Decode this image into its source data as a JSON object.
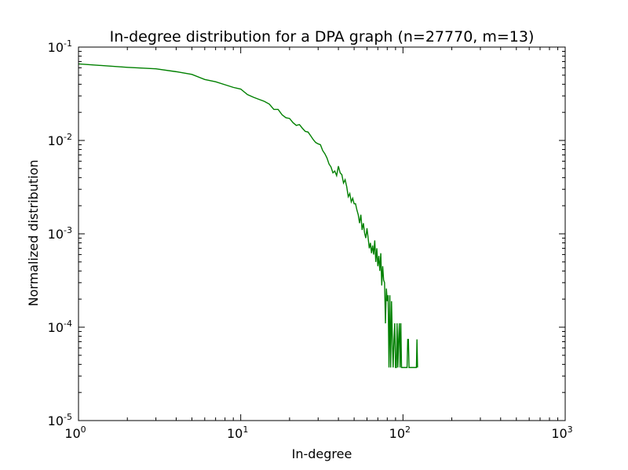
{
  "chart_data": {
    "type": "line",
    "title": "In-degree distribution for a DPA graph (n=27770, m=13)",
    "xlabel": "In-degree",
    "ylabel": "Normalized distribution",
    "xscale": "log",
    "yscale": "log",
    "xlim": [
      1,
      1000
    ],
    "ylim": [
      1e-05,
      0.1
    ],
    "grid": false,
    "legend": "none",
    "x_ticks": [
      {
        "value": 1,
        "base": "10",
        "exp": "0"
      },
      {
        "value": 10,
        "base": "10",
        "exp": "1"
      },
      {
        "value": 100,
        "base": "10",
        "exp": "2"
      },
      {
        "value": 1000,
        "base": "10",
        "exp": "3"
      }
    ],
    "y_ticks": [
      {
        "value": 1e-05,
        "base": "10",
        "exp": "-5"
      },
      {
        "value": 0.0001,
        "base": "10",
        "exp": "-4"
      },
      {
        "value": 0.001,
        "base": "10",
        "exp": "-3"
      },
      {
        "value": 0.01,
        "base": "10",
        "exp": "-2"
      },
      {
        "value": 0.1,
        "base": "10",
        "exp": "-1"
      }
    ],
    "series": [
      {
        "color": "#008000",
        "x": [
          1,
          2,
          3,
          4,
          5,
          6,
          7,
          8,
          9,
          10,
          11,
          12,
          13,
          14,
          15,
          16,
          17,
          18,
          19,
          20,
          21,
          22,
          23,
          24,
          25,
          26,
          27,
          28,
          29,
          30,
          31,
          32,
          33,
          34,
          35,
          36,
          37,
          38,
          39,
          40,
          41,
          42,
          43,
          44,
          45,
          46,
          47,
          48,
          49,
          50,
          51,
          52,
          53,
          54,
          55,
          56,
          57,
          58,
          59,
          60,
          61,
          62,
          63,
          64,
          65,
          66,
          67,
          68,
          69,
          70,
          71,
          72,
          73,
          74,
          75,
          76,
          77,
          78,
          79,
          80,
          81,
          82,
          83,
          84,
          85,
          86,
          87,
          88,
          89,
          90,
          91,
          92,
          93,
          94,
          95,
          96,
          97,
          98,
          99,
          100,
          101,
          102,
          103,
          104,
          105,
          106,
          107,
          108,
          109,
          110,
          111,
          112,
          113,
          114,
          115,
          116,
          117,
          118,
          119,
          120,
          121,
          122,
          123
        ],
        "y": [
          0.066,
          0.0607,
          0.0585,
          0.0545,
          0.051,
          0.045,
          0.0425,
          0.0395,
          0.037,
          0.0355,
          0.031,
          0.029,
          0.0275,
          0.0262,
          0.0245,
          0.0215,
          0.0215,
          0.0188,
          0.0175,
          0.0172,
          0.0155,
          0.0145,
          0.0148,
          0.0135,
          0.0125,
          0.0123,
          0.0112,
          0.0102,
          0.0095,
          0.0092,
          0.009,
          0.0078,
          0.0072,
          0.0065,
          0.0056,
          0.0052,
          0.0045,
          0.0047,
          0.0042,
          0.0053,
          0.0045,
          0.0043,
          0.0035,
          0.0038,
          0.0032,
          0.0025,
          0.0027,
          0.0022,
          0.0024,
          0.0021,
          0.0021,
          0.0018,
          0.0016,
          0.0013,
          0.0016,
          0.0011,
          0.0013,
          0.00102,
          0.0009,
          0.00115,
          0.0009,
          0.0007,
          0.0008,
          0.00062,
          0.00075,
          0.0006,
          0.00085,
          0.0005,
          0.0007,
          0.00045,
          0.00058,
          0.0004,
          0.00062,
          0.00028,
          0.00045,
          0.00032,
          0.0003,
          0.00011,
          0.00026,
          0.00019,
          0.00022,
          3.7e-05,
          0.00022,
          3.7e-05,
          0.00019,
          7.4e-05,
          3.7e-05,
          7.4e-05,
          0.00011,
          3.7e-05,
          3.7e-05,
          0.00011,
          3.7e-05,
          7.4e-05,
          0.00011,
          3.7e-05,
          0.00011,
          3.7e-05,
          3.7e-05,
          3.7e-05,
          3.7e-05,
          3.7e-05,
          3.7e-05,
          3.7e-05,
          3.7e-05,
          3.7e-05,
          7.4e-05,
          7.4e-05,
          3.7e-05,
          3.7e-05,
          3.7e-05,
          3.7e-05,
          3.7e-05,
          3.7e-05,
          3.7e-05,
          3.7e-05,
          3.7e-05,
          3.7e-05,
          3.7e-05,
          3.7e-05,
          3.7e-05,
          7.4e-05,
          3.7e-05
        ]
      }
    ]
  }
}
